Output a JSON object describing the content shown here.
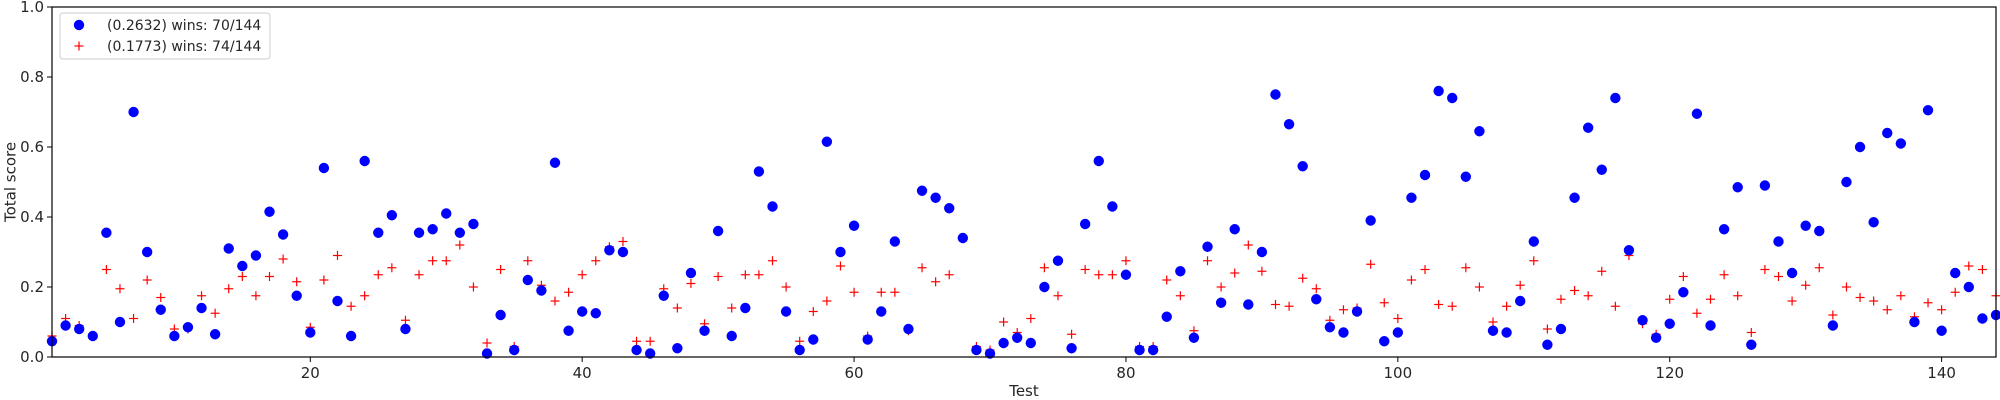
{
  "chart_data": {
    "type": "scatter",
    "xlabel": "Test",
    "ylabel": "Total score",
    "xlim": [
      1,
      144
    ],
    "ylim": [
      0,
      1.0
    ],
    "xticks": [
      20,
      40,
      60,
      80,
      100,
      120,
      140
    ],
    "yticks": [
      0.0,
      0.2,
      0.4,
      0.6,
      0.8,
      1.0
    ],
    "grid": false,
    "legend_position": "upper-left",
    "series": [
      {
        "name": "(0.2632) wins: 70/144",
        "marker": "circle",
        "color": "#0000ff",
        "x": [
          1,
          2,
          3,
          4,
          5,
          6,
          7,
          8,
          9,
          10,
          11,
          12,
          13,
          14,
          15,
          16,
          17,
          18,
          19,
          20,
          21,
          22,
          23,
          24,
          25,
          26,
          27,
          28,
          29,
          30,
          31,
          32,
          33,
          34,
          35,
          36,
          37,
          38,
          39,
          40,
          41,
          42,
          43,
          44,
          45,
          46,
          47,
          48,
          49,
          50,
          51,
          52,
          53,
          54,
          55,
          56,
          57,
          58,
          59,
          60,
          61,
          62,
          63,
          64,
          65,
          66,
          67,
          68,
          69,
          70,
          71,
          72,
          73,
          74,
          75,
          76,
          77,
          78,
          79,
          80,
          81,
          82,
          83,
          84,
          85,
          86,
          87,
          88,
          89,
          90,
          91,
          92,
          93,
          94,
          95,
          96,
          97,
          98,
          99,
          100,
          101,
          102,
          103,
          104,
          105,
          106,
          107,
          108,
          109,
          110,
          111,
          112,
          113,
          114,
          115,
          116,
          117,
          118,
          119,
          120,
          121,
          122,
          123,
          124,
          125,
          126,
          127,
          128,
          129,
          130,
          131,
          132,
          133,
          134,
          135,
          136,
          137,
          138,
          139,
          140,
          141,
          142,
          143,
          144
        ],
        "y": [
          0.045,
          0.09,
          0.08,
          0.06,
          0.355,
          0.1,
          0.7,
          0.3,
          0.135,
          0.06,
          0.085,
          0.14,
          0.065,
          0.31,
          0.26,
          0.29,
          0.415,
          0.35,
          0.175,
          0.07,
          0.54,
          0.16,
          0.06,
          0.56,
          0.355,
          0.405,
          0.08,
          0.355,
          0.365,
          0.41,
          0.355,
          0.38,
          0.01,
          0.12,
          0.02,
          0.22,
          0.19,
          0.555,
          0.075,
          0.13,
          0.125,
          0.305,
          0.3,
          0.02,
          0.01,
          0.175,
          0.025,
          0.24,
          0.075,
          0.36,
          0.06,
          0.14,
          0.53,
          0.43,
          0.13,
          0.02,
          0.05,
          0.615,
          0.3,
          0.375,
          0.05,
          0.13,
          0.33,
          0.08,
          0.475,
          0.455,
          0.425,
          0.34,
          0.02,
          0.01,
          0.04,
          0.055,
          0.04,
          0.2,
          0.275,
          0.025,
          0.38,
          0.56,
          0.43,
          0.235,
          0.02,
          0.02,
          0.115,
          0.245,
          0.055,
          0.315,
          0.155,
          0.365,
          0.15,
          0.3,
          0.75,
          0.665,
          0.545,
          0.165,
          0.085,
          0.07,
          0.13,
          0.39,
          0.045,
          0.07,
          0.455,
          0.52,
          0.76,
          0.74,
          0.515,
          0.645,
          0.075,
          0.07,
          0.16,
          0.33,
          0.035,
          0.08,
          0.455,
          0.655,
          0.535,
          0.74,
          0.305,
          0.105,
          0.055,
          0.095,
          0.185,
          0.695,
          0.09,
          0.365,
          0.485,
          0.035,
          0.49,
          0.33,
          0.24,
          0.375,
          0.36,
          0.09,
          0.5,
          0.6,
          0.385,
          0.64,
          0.61,
          0.1,
          0.705,
          0.075,
          0.24,
          0.2,
          0.11,
          0.12
        ]
      },
      {
        "name": "(0.1773) wins: 74/144",
        "marker": "plus",
        "color": "#ff0000",
        "x": [
          1,
          2,
          3,
          4,
          5,
          6,
          7,
          8,
          9,
          10,
          11,
          12,
          13,
          14,
          15,
          16,
          17,
          18,
          19,
          20,
          21,
          22,
          23,
          24,
          25,
          26,
          27,
          28,
          29,
          30,
          31,
          32,
          33,
          34,
          35,
          36,
          37,
          38,
          39,
          40,
          41,
          42,
          43,
          44,
          45,
          46,
          47,
          48,
          49,
          50,
          51,
          52,
          53,
          54,
          55,
          56,
          57,
          58,
          59,
          60,
          61,
          62,
          63,
          64,
          65,
          66,
          67,
          68,
          69,
          70,
          71,
          72,
          73,
          74,
          75,
          76,
          77,
          78,
          79,
          80,
          81,
          82,
          83,
          84,
          85,
          86,
          87,
          88,
          89,
          90,
          91,
          92,
          93,
          94,
          95,
          96,
          97,
          98,
          99,
          100,
          101,
          102,
          103,
          104,
          105,
          106,
          107,
          108,
          109,
          110,
          111,
          112,
          113,
          114,
          115,
          116,
          117,
          118,
          119,
          120,
          121,
          122,
          123,
          124,
          125,
          126,
          127,
          128,
          129,
          130,
          131,
          132,
          133,
          134,
          135,
          136,
          137,
          138,
          139,
          140,
          141,
          142,
          143,
          144
        ],
        "y": [
          0.06,
          0.11,
          0.09,
          0.06,
          0.25,
          0.195,
          0.11,
          0.22,
          0.17,
          0.08,
          0.08,
          0.175,
          0.125,
          0.195,
          0.23,
          0.175,
          0.23,
          0.28,
          0.215,
          0.085,
          0.22,
          0.29,
          0.145,
          0.175,
          0.235,
          0.255,
          0.105,
          0.235,
          0.275,
          0.275,
          0.32,
          0.2,
          0.04,
          0.25,
          0.03,
          0.275,
          0.205,
          0.16,
          0.185,
          0.235,
          0.275,
          0.315,
          0.33,
          0.045,
          0.045,
          0.195,
          0.14,
          0.21,
          0.095,
          0.23,
          0.14,
          0.235,
          0.235,
          0.275,
          0.2,
          0.045,
          0.13,
          0.16,
          0.26,
          0.185,
          0.06,
          0.185,
          0.185,
          0.075,
          0.255,
          0.215,
          0.235,
          0.34,
          0.03,
          0.02,
          0.1,
          0.07,
          0.11,
          0.255,
          0.175,
          0.065,
          0.25,
          0.235,
          0.235,
          0.275,
          0.03,
          0.03,
          0.22,
          0.175,
          0.075,
          0.275,
          0.2,
          0.24,
          0.32,
          0.245,
          0.15,
          0.145,
          0.225,
          0.195,
          0.105,
          0.135,
          0.14,
          0.265,
          0.155,
          0.11,
          0.22,
          0.25,
          0.15,
          0.145,
          0.255,
          0.2,
          0.1,
          0.145,
          0.205,
          0.275,
          0.08,
          0.165,
          0.19,
          0.175,
          0.245,
          0.145,
          0.29,
          0.095,
          0.065,
          0.165,
          0.23,
          0.125,
          0.165,
          0.235,
          0.175,
          0.07,
          0.25,
          0.23,
          0.16,
          0.205,
          0.255,
          0.12,
          0.2,
          0.17,
          0.16,
          0.135,
          0.175,
          0.115,
          0.155,
          0.135,
          0.185,
          0.26,
          0.25,
          0.175
        ]
      }
    ]
  }
}
